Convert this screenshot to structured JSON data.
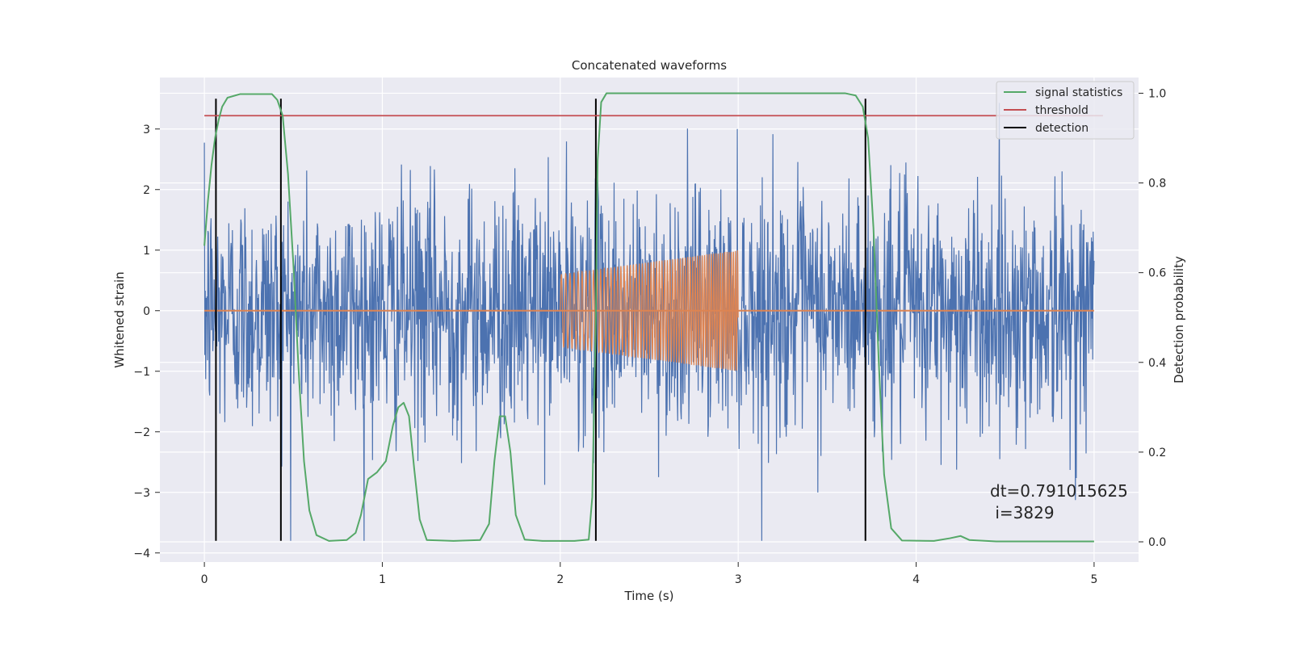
{
  "chart_data": {
    "type": "line",
    "title": "Concatenated waveforms",
    "xlabel": "Time (s)",
    "ylabel_left": "Whitened strain",
    "ylabel_right": "Detection probability",
    "xlim": [
      -0.25,
      5.25
    ],
    "ylim_left": [
      -4.15,
      3.85
    ],
    "ylim_right": [
      -0.045,
      1.035
    ],
    "x_ticks": [
      0,
      1,
      2,
      3,
      4,
      5
    ],
    "x_tick_labels": [
      "0",
      "1",
      "2",
      "3",
      "4",
      "5"
    ],
    "y_ticks_left": [
      -4,
      -3,
      -2,
      -1,
      0,
      1,
      2,
      3
    ],
    "y_tick_labels_left": [
      "−4",
      "−3",
      "−2",
      "−1",
      "0",
      "1",
      "2",
      "3"
    ],
    "y_ticks_right": [
      0.0,
      0.2,
      0.4,
      0.6,
      0.8,
      1.0
    ],
    "y_tick_labels_right": [
      "0.0",
      "0.2",
      "0.4",
      "0.6",
      "0.8",
      "1.0"
    ],
    "grid": true,
    "legend_position": "top-right",
    "series": [
      {
        "name": "whitened-noise",
        "axis": "left",
        "color": "#4c72b0",
        "x_range": [
          0,
          5
        ],
        "sample_dt": 0.0025,
        "amplitude_range": [
          -3.8,
          3.5
        ]
      },
      {
        "name": "injected-chirp",
        "axis": "left",
        "color": "#dd8452",
        "flat_value": 0,
        "chirp_x_range": [
          2.0,
          3.0
        ],
        "chirp_amplitude_start": 0.6,
        "chirp_amplitude_end": 1.0,
        "chirp_frequency_start": 40,
        "chirp_frequency_end": 85
      },
      {
        "name": "signal statistics",
        "axis": "right",
        "color": "#55a868",
        "points": [
          [
            0.0,
            0.66
          ],
          [
            0.02,
            0.76
          ],
          [
            0.04,
            0.84
          ],
          [
            0.06,
            0.9
          ],
          [
            0.08,
            0.94
          ],
          [
            0.1,
            0.97
          ],
          [
            0.13,
            0.99
          ],
          [
            0.2,
            0.998
          ],
          [
            0.38,
            0.998
          ],
          [
            0.41,
            0.985
          ],
          [
            0.44,
            0.95
          ],
          [
            0.47,
            0.82
          ],
          [
            0.5,
            0.62
          ],
          [
            0.53,
            0.38
          ],
          [
            0.56,
            0.18
          ],
          [
            0.59,
            0.07
          ],
          [
            0.63,
            0.015
          ],
          [
            0.7,
            0.002
          ],
          [
            0.8,
            0.004
          ],
          [
            0.85,
            0.02
          ],
          [
            0.88,
            0.06
          ],
          [
            0.92,
            0.14
          ],
          [
            0.97,
            0.155
          ],
          [
            1.02,
            0.18
          ],
          [
            1.06,
            0.26
          ],
          [
            1.09,
            0.3
          ],
          [
            1.12,
            0.31
          ],
          [
            1.15,
            0.28
          ],
          [
            1.18,
            0.16
          ],
          [
            1.21,
            0.05
          ],
          [
            1.25,
            0.004
          ],
          [
            1.4,
            0.002
          ],
          [
            1.55,
            0.004
          ],
          [
            1.6,
            0.04
          ],
          [
            1.63,
            0.18
          ],
          [
            1.66,
            0.28
          ],
          [
            1.69,
            0.28
          ],
          [
            1.72,
            0.2
          ],
          [
            1.75,
            0.06
          ],
          [
            1.8,
            0.005
          ],
          [
            1.9,
            0.002
          ],
          [
            2.08,
            0.002
          ],
          [
            2.16,
            0.005
          ],
          [
            2.18,
            0.1
          ],
          [
            2.2,
            0.5
          ],
          [
            2.21,
            0.85
          ],
          [
            2.23,
            0.98
          ],
          [
            2.26,
            1.0
          ],
          [
            3.6,
            1.0
          ],
          [
            3.66,
            0.995
          ],
          [
            3.7,
            0.97
          ],
          [
            3.73,
            0.9
          ],
          [
            3.76,
            0.7
          ],
          [
            3.79,
            0.4
          ],
          [
            3.82,
            0.15
          ],
          [
            3.86,
            0.03
          ],
          [
            3.92,
            0.003
          ],
          [
            4.1,
            0.002
          ],
          [
            4.19,
            0.008
          ],
          [
            4.25,
            0.013
          ],
          [
            4.3,
            0.004
          ],
          [
            4.45,
            0.001
          ],
          [
            5.0,
            0.001
          ]
        ]
      },
      {
        "name": "threshold",
        "axis": "right",
        "color": "#c44e52",
        "points": [
          [
            0.0,
            0.95
          ],
          [
            5.05,
            0.95
          ]
        ]
      },
      {
        "name": "detection",
        "axis": "left",
        "color": "#000000",
        "x_values": [
          0.065,
          0.43,
          2.2,
          3.715
        ],
        "y_range": [
          -3.8,
          3.5
        ]
      }
    ],
    "legend": [
      {
        "label": "signal statistics",
        "color": "#55a868"
      },
      {
        "label": "threshold",
        "color": "#c44e52"
      },
      {
        "label": "detection",
        "color": "#000000"
      }
    ],
    "annotation": {
      "line1": "dt=0.791015625",
      "line2": " i=3829"
    }
  }
}
